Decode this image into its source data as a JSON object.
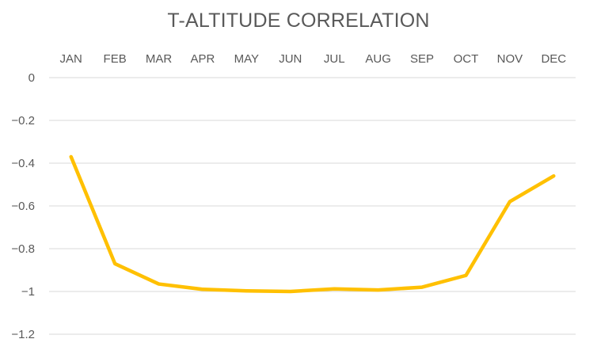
{
  "chart_data": {
    "type": "line",
    "title": "T-ALTITUDE CORRELATION",
    "xlabel": "",
    "ylabel": "",
    "categories": [
      "JAN",
      "FEB",
      "MAR",
      "APR",
      "MAY",
      "JUN",
      "JUL",
      "AUG",
      "SEP",
      "OCT",
      "NOV",
      "DEC"
    ],
    "series": [
      {
        "values": [
          -0.37,
          -0.87,
          -0.965,
          -0.99,
          -0.997,
          -1.0,
          -0.988,
          -0.993,
          -0.98,
          -0.925,
          -0.58,
          -0.46
        ],
        "color": "#FFC000"
      }
    ],
    "yticks": [
      "0",
      "-0.2",
      "-0.4",
      "-0.6",
      "-0.8",
      "-1",
      "-1.2"
    ],
    "ylim": [
      -1.2,
      0
    ],
    "x_axis_position": "top",
    "grid": true,
    "legend": "none",
    "colors": {
      "line": "#FFC000",
      "grid": "#D9D9D9",
      "text": "#595959"
    }
  }
}
